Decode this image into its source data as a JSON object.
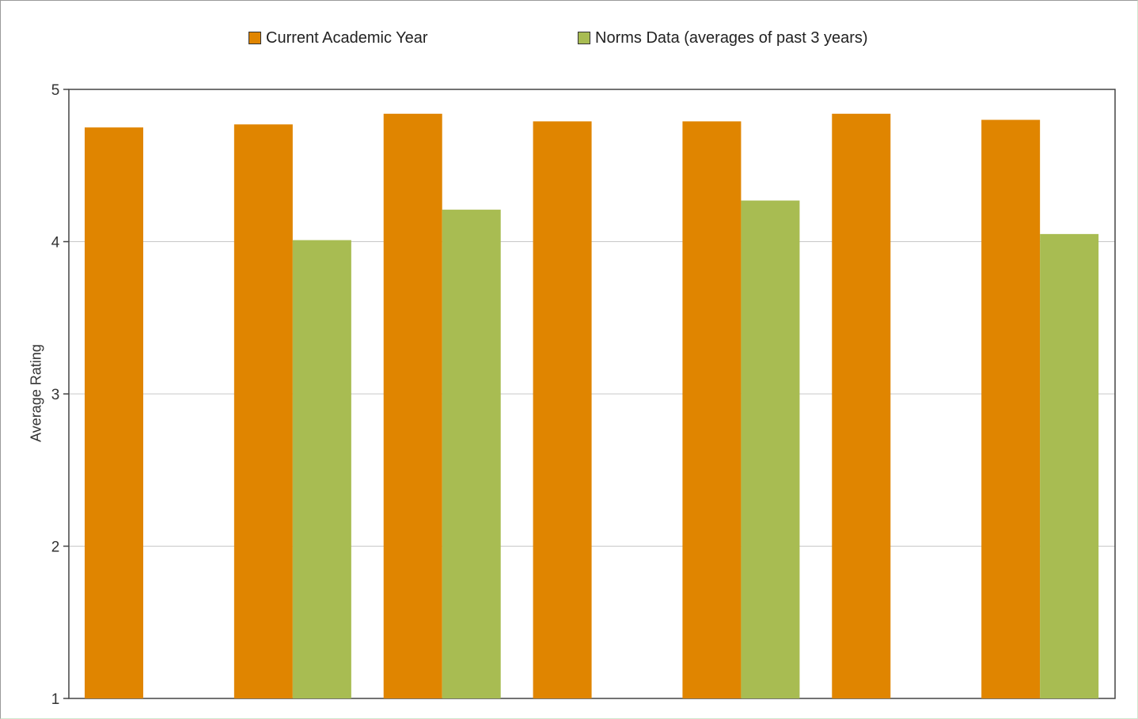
{
  "colors": {
    "current": "#e08500",
    "norms": "#a8bc52",
    "grid": "#c8c8c8",
    "axis": "#444444"
  },
  "chart_data": {
    "type": "bar",
    "title": "",
    "xlabel": "",
    "ylabel": "Average Rating",
    "ylim": [
      1,
      5
    ],
    "yticks": [
      "1",
      "2",
      "3",
      "4",
      "5"
    ],
    "grid": true,
    "legend_position": "top-center",
    "categories": [
      "",
      "",
      "",
      "",
      "",
      "",
      ""
    ],
    "series": [
      {
        "name": "Current Academic Year",
        "values": [
          4.75,
          4.77,
          4.84,
          4.79,
          4.79,
          4.84,
          4.8
        ]
      },
      {
        "name": "Norms Data (averages of past 3 years)",
        "values": [
          null,
          4.01,
          4.21,
          null,
          4.27,
          null,
          4.05
        ]
      }
    ]
  }
}
